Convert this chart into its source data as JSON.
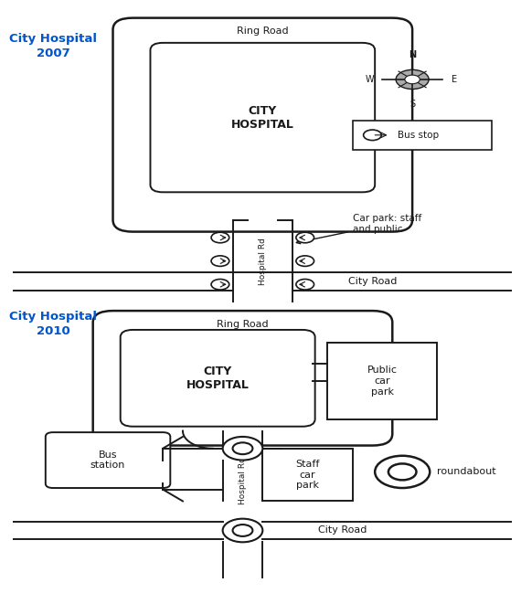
{
  "title_2007": "City Hospital\n2007",
  "title_2010": "City Hospital\n2010",
  "title_color": "#0055CC",
  "bg_color": "#ffffff",
  "line_color": "#1a1a1a",
  "ring_road_label": "Ring Road",
  "city_hospital_label": "CITY\nHOSPITAL",
  "city_road_label": "City Road",
  "hospital_rd_label": "Hospital Rd",
  "car_park_label": "Car park: staff\nand public",
  "public_car_park_label": "Public\ncar\npark",
  "staff_car_park_label": "Staff\ncar\npark",
  "bus_station_label": "Bus\nstation",
  "bus_stop_label": "Bus stop",
  "roundabout_label": "roundabout"
}
